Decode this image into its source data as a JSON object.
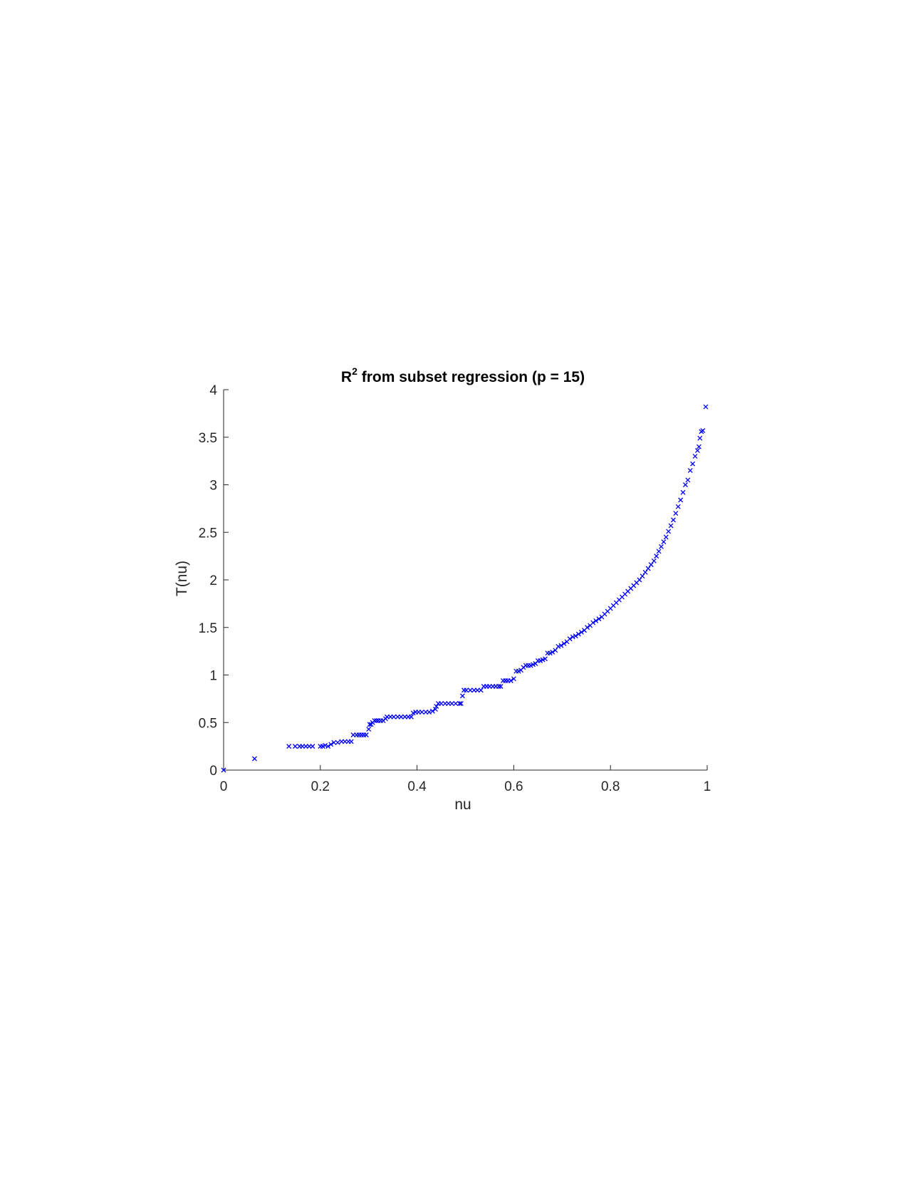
{
  "chart_data": {
    "type": "scatter",
    "title": {
      "base": "R",
      "superscript": "2",
      "rest": " from subset regression (p = 15)"
    },
    "xlabel": "nu",
    "ylabel": "T(nu)",
    "xlim": [
      0,
      1
    ],
    "ylim": [
      0,
      4
    ],
    "xticks": [
      0,
      0.2,
      0.4,
      0.6,
      0.8,
      1
    ],
    "xtick_labels": [
      "0",
      "0.2",
      "0.4",
      "0.6",
      "0.8",
      "1"
    ],
    "yticks": [
      0,
      0.5,
      1,
      1.5,
      2,
      2.5,
      3,
      3.5,
      4
    ],
    "ytick_labels": [
      "0",
      "0.5",
      "1",
      "1.5",
      "2",
      "2.5",
      "3",
      "3.5",
      "4"
    ],
    "grid": false,
    "marker": "x",
    "color": "#0000ff",
    "series": [
      {
        "x": [
          0.0,
          0.064,
          0.135,
          0.148,
          0.157,
          0.163,
          0.17,
          0.177,
          0.184,
          0.2,
          0.205,
          0.21,
          0.216,
          0.222,
          0.228,
          0.236,
          0.244,
          0.251,
          0.258,
          0.264,
          0.268,
          0.275,
          0.28,
          0.285,
          0.29,
          0.295,
          0.3,
          0.302,
          0.305,
          0.308,
          0.312,
          0.316,
          0.32,
          0.325,
          0.33,
          0.335,
          0.338,
          0.345,
          0.352,
          0.36,
          0.367,
          0.375,
          0.382,
          0.388,
          0.392,
          0.397,
          0.403,
          0.41,
          0.418,
          0.425,
          0.432,
          0.438,
          0.44,
          0.444,
          0.45,
          0.458,
          0.465,
          0.472,
          0.48,
          0.488,
          0.491,
          0.494,
          0.497,
          0.502,
          0.51,
          0.518,
          0.525,
          0.532,
          0.538,
          0.544,
          0.55,
          0.557,
          0.563,
          0.569,
          0.573,
          0.578,
          0.583,
          0.588,
          0.594,
          0.6,
          0.605,
          0.61,
          0.615,
          0.62,
          0.625,
          0.63,
          0.635,
          0.64,
          0.645,
          0.65,
          0.655,
          0.66,
          0.665,
          0.67,
          0.675,
          0.68,
          0.686,
          0.692,
          0.698,
          0.704,
          0.71,
          0.716,
          0.722,
          0.728,
          0.734,
          0.74,
          0.746,
          0.752,
          0.758,
          0.764,
          0.77,
          0.776,
          0.782,
          0.788,
          0.794,
          0.8,
          0.806,
          0.812,
          0.818,
          0.824,
          0.83,
          0.836,
          0.842,
          0.848,
          0.854,
          0.86,
          0.866,
          0.872,
          0.878,
          0.884,
          0.89,
          0.895,
          0.9,
          0.905,
          0.91,
          0.915,
          0.92,
          0.925,
          0.93,
          0.935,
          0.94,
          0.945,
          0.95,
          0.955,
          0.96,
          0.965,
          0.97,
          0.975,
          0.98,
          0.983,
          0.985,
          0.988,
          0.991,
          0.997
        ],
        "y": [
          0.0,
          0.12,
          0.25,
          0.25,
          0.25,
          0.25,
          0.25,
          0.25,
          0.25,
          0.25,
          0.25,
          0.26,
          0.25,
          0.27,
          0.29,
          0.29,
          0.3,
          0.3,
          0.3,
          0.3,
          0.37,
          0.37,
          0.37,
          0.37,
          0.37,
          0.37,
          0.43,
          0.48,
          0.48,
          0.5,
          0.52,
          0.52,
          0.52,
          0.52,
          0.52,
          0.54,
          0.56,
          0.56,
          0.56,
          0.56,
          0.56,
          0.56,
          0.56,
          0.56,
          0.6,
          0.61,
          0.61,
          0.61,
          0.61,
          0.61,
          0.62,
          0.64,
          0.67,
          0.7,
          0.7,
          0.7,
          0.7,
          0.7,
          0.7,
          0.7,
          0.7,
          0.78,
          0.84,
          0.84,
          0.84,
          0.84,
          0.84,
          0.84,
          0.88,
          0.88,
          0.88,
          0.88,
          0.88,
          0.88,
          0.88,
          0.94,
          0.94,
          0.94,
          0.94,
          0.96,
          1.04,
          1.04,
          1.05,
          1.08,
          1.1,
          1.1,
          1.1,
          1.11,
          1.12,
          1.15,
          1.15,
          1.16,
          1.17,
          1.23,
          1.23,
          1.24,
          1.26,
          1.3,
          1.31,
          1.33,
          1.35,
          1.38,
          1.4,
          1.41,
          1.43,
          1.45,
          1.47,
          1.5,
          1.52,
          1.55,
          1.57,
          1.59,
          1.61,
          1.64,
          1.67,
          1.7,
          1.73,
          1.76,
          1.79,
          1.82,
          1.85,
          1.88,
          1.91,
          1.94,
          1.97,
          2.0,
          2.04,
          2.08,
          2.12,
          2.16,
          2.2,
          2.25,
          2.3,
          2.35,
          2.4,
          2.45,
          2.51,
          2.57,
          2.63,
          2.7,
          2.77,
          2.84,
          2.92,
          3.0,
          3.05,
          3.15,
          3.22,
          3.3,
          3.36,
          3.4,
          3.49,
          3.56,
          3.57,
          3.82
        ]
      }
    ]
  }
}
